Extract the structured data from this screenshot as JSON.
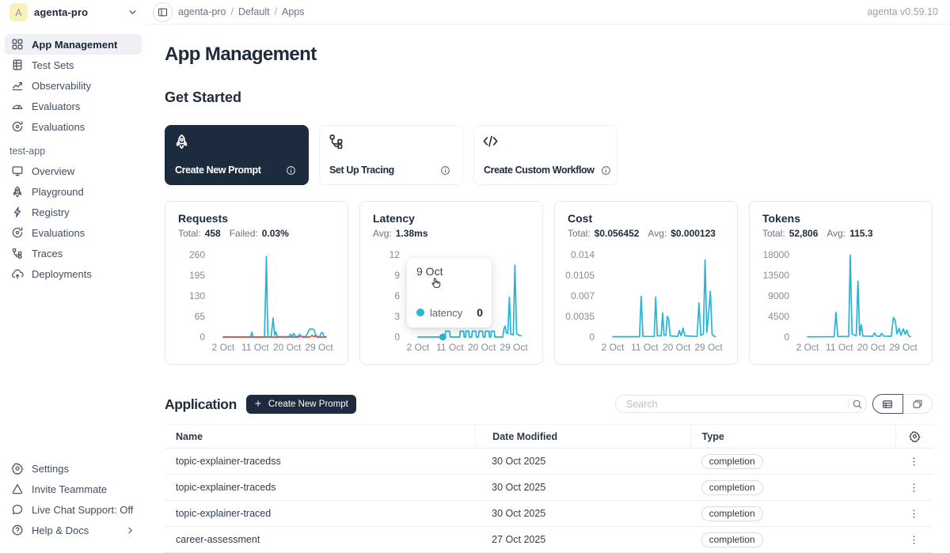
{
  "colors": {
    "accent": "#27b4d8",
    "danger": "#f0483f",
    "dark_navy": "#1c2c3e",
    "axis_label": "#848c98"
  },
  "workspace": {
    "initial": "A",
    "name": "agenta-pro"
  },
  "topbar": {
    "breadcrumb": [
      "agenta-pro",
      "Default",
      "Apps"
    ],
    "version": "agenta v0.59.10"
  },
  "sidebar": {
    "main_items": [
      {
        "icon": "grid-icon",
        "label": "App Management",
        "active": true
      },
      {
        "icon": "test-sets-icon",
        "label": "Test Sets",
        "active": false
      },
      {
        "icon": "observability-icon",
        "label": "Observability",
        "active": false
      },
      {
        "icon": "evaluators-icon",
        "label": "Evaluators",
        "active": false
      },
      {
        "icon": "evaluations-icon",
        "label": "Evaluations",
        "active": false
      }
    ],
    "section_label": "test-app",
    "app_items": [
      {
        "icon": "overview-icon",
        "label": "Overview",
        "active": false
      },
      {
        "icon": "rocket-icon",
        "label": "Playground",
        "active": false
      },
      {
        "icon": "registry-icon",
        "label": "Registry",
        "active": false
      },
      {
        "icon": "evaluations-icon",
        "label": "Evaluations",
        "active": false
      },
      {
        "icon": "traces-icon",
        "label": "Traces",
        "active": false
      },
      {
        "icon": "deployments-icon",
        "label": "Deployments",
        "active": false
      }
    ],
    "bottom_items": [
      {
        "icon": "gear-icon",
        "label": "Settings",
        "chevron": false
      },
      {
        "icon": "invite-icon",
        "label": "Invite Teammate",
        "chevron": false
      },
      {
        "icon": "chat-icon",
        "label": "Live Chat Support: Off",
        "chevron": false
      },
      {
        "icon": "help-icon",
        "label": "Help & Docs",
        "chevron": true
      }
    ]
  },
  "page": {
    "title": "App Management"
  },
  "get_started": {
    "heading": "Get Started",
    "cards": [
      {
        "icon": "rocket-icon",
        "label": "Create New Prompt",
        "variant": "dark"
      },
      {
        "icon": "tracing-icon",
        "label": "Set Up Tracing",
        "variant": "light"
      },
      {
        "icon": "code-icon",
        "label": "Create Custom Workflow",
        "variant": "light"
      }
    ]
  },
  "chart_data": [
    {
      "type": "line",
      "title": "Requests",
      "stats": [
        {
          "label": "Total:",
          "value": "458"
        },
        {
          "label": "Failed:",
          "value": "0.03%"
        }
      ],
      "ylim": [
        0,
        260
      ],
      "y_ticks": [
        "260",
        "195",
        "130",
        "65",
        "0"
      ],
      "x_ticks": [
        "2 Oct",
        "11 Oct",
        "20 Oct",
        "29 Oct"
      ],
      "x_tick_days": [
        2,
        11,
        20,
        29
      ],
      "xlim": [
        2,
        31
      ],
      "series": [
        {
          "name": "requests",
          "color": "#27b4d8",
          "points": [
            [
              2,
              0
            ],
            [
              9,
              0
            ],
            [
              9.7,
              0
            ],
            [
              10.05,
              15
            ],
            [
              10.4,
              0
            ],
            [
              13.6,
              0
            ],
            [
              13.95,
              150
            ],
            [
              14.15,
              255
            ],
            [
              14.45,
              60
            ],
            [
              14.6,
              0
            ],
            [
              15.5,
              0
            ],
            [
              15.8,
              35
            ],
            [
              16.05,
              60
            ],
            [
              16.35,
              20
            ],
            [
              16.55,
              6
            ],
            [
              16.8,
              17
            ],
            [
              17.2,
              2
            ],
            [
              18,
              1
            ],
            [
              20.5,
              1
            ],
            [
              21,
              9
            ],
            [
              21.45,
              2
            ],
            [
              21.9,
              12
            ],
            [
              22.3,
              2
            ],
            [
              23.1,
              2
            ],
            [
              23.5,
              9
            ],
            [
              24,
              2
            ],
            [
              25.3,
              1
            ],
            [
              25.8,
              14
            ],
            [
              26.3,
              24
            ],
            [
              27,
              26
            ],
            [
              27.6,
              23
            ],
            [
              28,
              7
            ],
            [
              28.4,
              2
            ],
            [
              29.2,
              1
            ],
            [
              29.6,
              13
            ],
            [
              30,
              14
            ],
            [
              30.4,
              1
            ],
            [
              31,
              0
            ]
          ]
        },
        {
          "name": "failed",
          "color": "#f0483f",
          "points": [
            [
              2,
              0
            ],
            [
              23.4,
              0
            ],
            [
              23.9,
              3
            ],
            [
              24.3,
              0
            ],
            [
              26.4,
              0
            ],
            [
              27,
              5
            ],
            [
              27.5,
              1
            ],
            [
              27.9,
              4
            ],
            [
              28.4,
              0
            ],
            [
              31,
              0
            ]
          ]
        }
      ]
    },
    {
      "type": "line",
      "title": "Latency",
      "stats": [
        {
          "label": "Avg:",
          "value": "1.38ms"
        }
      ],
      "ylim": [
        0,
        12
      ],
      "y_ticks": [
        "12",
        "9",
        "6",
        "3",
        "0"
      ],
      "x_ticks": [
        "2 Oct",
        "11 Oct",
        "20 Oct",
        "29 Oct"
      ],
      "x_tick_days": [
        2,
        11,
        20,
        29
      ],
      "xlim": [
        2,
        31
      ],
      "series": [
        {
          "name": "latency",
          "color": "#27b4d8",
          "points": [
            [
              2,
              0
            ],
            [
              9.6,
              0
            ],
            [
              9.8,
              0.85
            ],
            [
              10.9,
              0.85
            ],
            [
              11.05,
              0
            ],
            [
              13.75,
              0
            ],
            [
              13.9,
              0.85
            ],
            [
              14.85,
              0.85
            ],
            [
              15,
              0
            ],
            [
              15.4,
              0
            ],
            [
              15.55,
              0.85
            ],
            [
              16.3,
              0.85
            ],
            [
              16.45,
              0
            ],
            [
              17.15,
              0
            ],
            [
              17.3,
              0.85
            ],
            [
              18.3,
              0.85
            ],
            [
              18.45,
              0
            ],
            [
              19.05,
              0
            ],
            [
              19.2,
              0.85
            ],
            [
              20.2,
              0.85
            ],
            [
              20.35,
              0
            ],
            [
              20.9,
              0
            ],
            [
              21.05,
              0.85
            ],
            [
              22,
              0.85
            ],
            [
              22.15,
              0
            ],
            [
              22.5,
              0
            ],
            [
              22.65,
              0.85
            ],
            [
              23.5,
              0.85
            ],
            [
              23.65,
              0
            ],
            [
              25.9,
              0
            ],
            [
              26.2,
              1.2
            ],
            [
              26.55,
              1.6
            ],
            [
              26.9,
              0.6
            ],
            [
              27.3,
              0.5
            ],
            [
              27.75,
              5.8
            ],
            [
              28.15,
              0.4
            ],
            [
              28.85,
              0.3
            ],
            [
              29.3,
              10.5
            ],
            [
              29.8,
              0.5
            ],
            [
              30.5,
              0.25
            ],
            [
              31,
              0.2
            ]
          ]
        }
      ],
      "marker": {
        "day": 9,
        "value": 0
      },
      "tooltip": {
        "title": "9 Oct",
        "series_name": "latency",
        "value": "0"
      }
    },
    {
      "type": "line",
      "title": "Cost",
      "stats": [
        {
          "label": "Total:",
          "value": "$0.056452"
        },
        {
          "label": "Avg:",
          "value": "$0.000123"
        }
      ],
      "ylim": [
        0,
        0.014
      ],
      "y_ticks": [
        "0.014",
        "0.0105",
        "0.007",
        "0.0035",
        "0"
      ],
      "x_ticks": [
        "2 Oct",
        "11 Oct",
        "20 Oct",
        "29 Oct"
      ],
      "x_tick_days": [
        2,
        11,
        20,
        29
      ],
      "xlim": [
        2,
        31
      ],
      "series": [
        {
          "name": "cost",
          "color": "#27b4d8",
          "points": [
            [
              2,
              5e-05
            ],
            [
              9.55,
              5e-05
            ],
            [
              10,
              0.0069
            ],
            [
              10.5,
              0.0001
            ],
            [
              13.7,
              0.0001
            ],
            [
              14.1,
              0.0068
            ],
            [
              14.55,
              0.0002
            ],
            [
              15.65,
              0.0002
            ],
            [
              16.05,
              0.0041
            ],
            [
              16.45,
              0.0003
            ],
            [
              17,
              0.0003
            ],
            [
              17.35,
              0.0035
            ],
            [
              17.75,
              0.0031
            ],
            [
              18.2,
              0.0002
            ],
            [
              20.3,
              0.0001
            ],
            [
              20.75,
              0.0011
            ],
            [
              21.25,
              0.0002
            ],
            [
              21.8,
              0.0015
            ],
            [
              22.3,
              0.0002
            ],
            [
              25.75,
              0.0001
            ],
            [
              26.3,
              0.0058
            ],
            [
              26.8,
              0.0003
            ],
            [
              27.55,
              0.0005
            ],
            [
              28,
              0.0131
            ],
            [
              28.5,
              0.0008
            ],
            [
              29.1,
              0.0045
            ],
            [
              29.5,
              0.0078
            ],
            [
              30,
              0.0005
            ],
            [
              30.6,
              0.0001
            ],
            [
              31,
              0.0001
            ]
          ]
        }
      ]
    },
    {
      "type": "line",
      "title": "Tokens",
      "stats": [
        {
          "label": "Total:",
          "value": "52,806"
        },
        {
          "label": "Avg:",
          "value": "115.3"
        }
      ],
      "ylim": [
        0,
        18000
      ],
      "y_ticks": [
        "18000",
        "13500",
        "9000",
        "4500",
        "0"
      ],
      "x_ticks": [
        "2 Oct",
        "11 Oct",
        "20 Oct",
        "29 Oct"
      ],
      "x_tick_days": [
        2,
        11,
        20,
        29
      ],
      "xlim": [
        2,
        31
      ],
      "series": [
        {
          "name": "tokens",
          "color": "#27b4d8",
          "points": [
            [
              2,
              60
            ],
            [
              9.5,
              60
            ],
            [
              10,
              5400
            ],
            [
              10.55,
              100
            ],
            [
              13.6,
              100
            ],
            [
              14.05,
              17900
            ],
            [
              14.55,
              600
            ],
            [
              15.75,
              300
            ],
            [
              16.2,
              12200
            ],
            [
              16.7,
              400
            ],
            [
              17.15,
              2700
            ],
            [
              17.6,
              200
            ],
            [
              20.4,
              150
            ],
            [
              20.9,
              900
            ],
            [
              21.4,
              200
            ],
            [
              22.4,
              150
            ],
            [
              22.9,
              800
            ],
            [
              23.4,
              200
            ],
            [
              25.6,
              150
            ],
            [
              26.2,
              4300
            ],
            [
              26.75,
              3600
            ],
            [
              27.2,
              700
            ],
            [
              27.8,
              1900
            ],
            [
              28.3,
              400
            ],
            [
              29,
              1800
            ],
            [
              29.5,
              600
            ],
            [
              30,
              1500
            ],
            [
              30.5,
              200
            ],
            [
              31,
              120
            ]
          ]
        }
      ]
    }
  ],
  "application": {
    "heading": "Application",
    "create_button": "Create New Prompt",
    "search_placeholder": "Search",
    "table": {
      "columns": [
        "Name",
        "Date Modified",
        "Type"
      ],
      "rows": [
        {
          "name": "topic-explainer-tracedss",
          "date": "30 Oct 2025",
          "type": "completion"
        },
        {
          "name": "topic-explainer-traceds",
          "date": "30 Oct 2025",
          "type": "completion"
        },
        {
          "name": "topic-explainer-traced",
          "date": "30 Oct 2025",
          "type": "completion"
        },
        {
          "name": "career-assessment",
          "date": "27 Oct 2025",
          "type": "completion"
        }
      ]
    }
  }
}
